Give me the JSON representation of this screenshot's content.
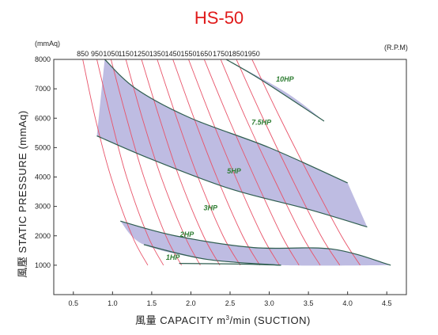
{
  "chart_data": {
    "type": "line",
    "title": "HS-50",
    "ylabel": "風壓  STATIC  PRESSURE  (mmAq)",
    "y_unit": "(mmAq)",
    "xlabel_main": "風量  CAPACITY  m",
    "xlabel_sup": "3",
    "xlabel_tail": "/min (SUCTION)",
    "rpm_unit": "(R.P.M)",
    "xlim": [
      0.25,
      4.75
    ],
    "ylim": [
      0,
      8000
    ],
    "x_ticks": [
      "0.5",
      "1.0",
      "1.5",
      "2.0",
      "2.5",
      "3.0",
      "3.5",
      "4.0",
      "4.5"
    ],
    "x_tick_values": [
      0.5,
      1.0,
      1.5,
      2.0,
      2.5,
      3.0,
      3.5,
      4.0,
      4.5
    ],
    "y_ticks": [
      "1000",
      "2000",
      "3000",
      "4000",
      "5000",
      "6000",
      "7000",
      "8000"
    ],
    "y_tick_values": [
      1000,
      2000,
      3000,
      4000,
      5000,
      6000,
      7000,
      8000
    ],
    "grid": false,
    "colors": {
      "band_fill": "#b3b0dd",
      "band_edge": "#2f5e50",
      "rpm_curve": "#e8546a",
      "title": "#e01a1a",
      "hp_label": "#2e7d32"
    },
    "rpm_curves": [
      {
        "label": "850",
        "points": [
          [
            0.62,
            8000
          ],
          [
            0.78,
            6000
          ],
          [
            0.98,
            4000
          ],
          [
            1.25,
            2000
          ],
          [
            1.45,
            1000
          ]
        ]
      },
      {
        "label": "950",
        "points": [
          [
            0.8,
            8000
          ],
          [
            0.98,
            6000
          ],
          [
            1.18,
            4000
          ],
          [
            1.45,
            2000
          ],
          [
            1.65,
            1000
          ]
        ]
      },
      {
        "label": "1050",
        "points": [
          [
            0.98,
            8000
          ],
          [
            1.18,
            6000
          ],
          [
            1.4,
            4000
          ],
          [
            1.68,
            2000
          ],
          [
            1.88,
            1000
          ]
        ]
      },
      {
        "label": "1150",
        "points": [
          [
            1.17,
            8000
          ],
          [
            1.38,
            6000
          ],
          [
            1.62,
            4000
          ],
          [
            1.92,
            2000
          ],
          [
            2.12,
            1000
          ]
        ]
      },
      {
        "label": "1250",
        "points": [
          [
            1.37,
            8000
          ],
          [
            1.6,
            6000
          ],
          [
            1.85,
            4000
          ],
          [
            2.16,
            2000
          ],
          [
            2.37,
            1000
          ]
        ]
      },
      {
        "label": "1350",
        "points": [
          [
            1.57,
            8000
          ],
          [
            1.82,
            6000
          ],
          [
            2.09,
            4000
          ],
          [
            2.41,
            2000
          ],
          [
            2.63,
            1000
          ]
        ]
      },
      {
        "label": "1450",
        "points": [
          [
            1.77,
            8000
          ],
          [
            2.04,
            6000
          ],
          [
            2.33,
            4000
          ],
          [
            2.66,
            2000
          ],
          [
            2.88,
            1000
          ]
        ]
      },
      {
        "label": "1550",
        "points": [
          [
            1.97,
            8000
          ],
          [
            2.26,
            6000
          ],
          [
            2.57,
            4000
          ],
          [
            2.91,
            2000
          ],
          [
            3.13,
            1000
          ]
        ]
      },
      {
        "label": "1650",
        "points": [
          [
            2.17,
            8000
          ],
          [
            2.48,
            6000
          ],
          [
            2.81,
            4000
          ],
          [
            3.16,
            2000
          ],
          [
            3.38,
            1000
          ]
        ]
      },
      {
        "label": "1750",
        "points": [
          [
            2.38,
            8000
          ],
          [
            2.7,
            6000
          ],
          [
            3.05,
            4000
          ],
          [
            3.42,
            2000
          ],
          [
            3.65,
            1000
          ]
        ]
      },
      {
        "label": "1850",
        "points": [
          [
            2.58,
            8000
          ],
          [
            2.92,
            6000
          ],
          [
            3.28,
            4000
          ],
          [
            3.66,
            2000
          ],
          [
            3.9,
            1000
          ]
        ]
      },
      {
        "label": "1950",
        "points": [
          [
            2.78,
            8000
          ],
          [
            3.14,
            6000
          ],
          [
            3.52,
            4000
          ],
          [
            3.92,
            2000
          ],
          [
            4.16,
            1000
          ]
        ]
      }
    ],
    "bands": [
      {
        "upper": [
          [
            0.9,
            8000
          ],
          [
            1.3,
            7000
          ],
          [
            2.0,
            6000
          ],
          [
            3.0,
            5000
          ],
          [
            4.0,
            3800
          ]
        ],
        "lower": [
          [
            0.8,
            5400
          ],
          [
            1.5,
            4600
          ],
          [
            2.5,
            3600
          ],
          [
            3.5,
            2900
          ],
          [
            4.25,
            2300
          ]
        ]
      },
      {
        "upper": [
          [
            1.1,
            2500
          ],
          [
            1.8,
            2000
          ],
          [
            2.8,
            1600
          ],
          [
            3.8,
            1550
          ],
          [
            4.55,
            1000
          ]
        ],
        "lower": [
          [
            1.1,
            2500
          ],
          [
            1.4,
            1700
          ],
          [
            2.2,
            1200
          ],
          [
            3.15,
            1000
          ],
          [
            4.55,
            1000
          ]
        ]
      },
      {
        "upper": [
          [
            2.45,
            8000
          ],
          [
            3.2,
            6900
          ],
          [
            3.7,
            5900
          ]
        ],
        "lower": [
          [
            2.45,
            8000
          ],
          [
            2.9,
            7300
          ],
          [
            3.7,
            5900
          ]
        ]
      }
    ],
    "hp_curves": [
      {
        "name": "10HP",
        "label_at": [
          3.2,
          7250
        ],
        "points": [
          [
            2.45,
            8000
          ],
          [
            2.9,
            7300
          ],
          [
            3.7,
            5900
          ]
        ]
      },
      {
        "name": "7.5HP",
        "label_at": [
          2.9,
          5780
        ],
        "points": [
          [
            0.9,
            8000
          ],
          [
            1.3,
            7000
          ],
          [
            2.0,
            6000
          ],
          [
            3.0,
            5000
          ],
          [
            4.0,
            3800
          ]
        ]
      },
      {
        "name": "5HP",
        "label_at": [
          2.55,
          4120
        ],
        "points": [
          [
            0.8,
            5400
          ],
          [
            1.5,
            4600
          ],
          [
            2.5,
            3600
          ],
          [
            3.5,
            2900
          ],
          [
            4.25,
            2300
          ]
        ]
      },
      {
        "name": "3HP",
        "label_at": [
          2.25,
          2870
        ],
        "points": [
          [
            1.1,
            2500
          ],
          [
            1.8,
            2000
          ],
          [
            2.8,
            1600
          ],
          [
            3.8,
            1550
          ],
          [
            4.55,
            1000
          ]
        ]
      },
      {
        "name": "2HP",
        "label_at": [
          1.95,
          1970
        ],
        "points": [
          [
            1.4,
            1700
          ],
          [
            2.2,
            1200
          ],
          [
            3.15,
            1000
          ]
        ]
      },
      {
        "name": "1HP",
        "label_at": [
          1.77,
          1190
        ],
        "points": [
          [
            1.85,
            1060
          ],
          [
            2.6,
            1040
          ],
          [
            3.15,
            1000
          ]
        ]
      }
    ]
  }
}
